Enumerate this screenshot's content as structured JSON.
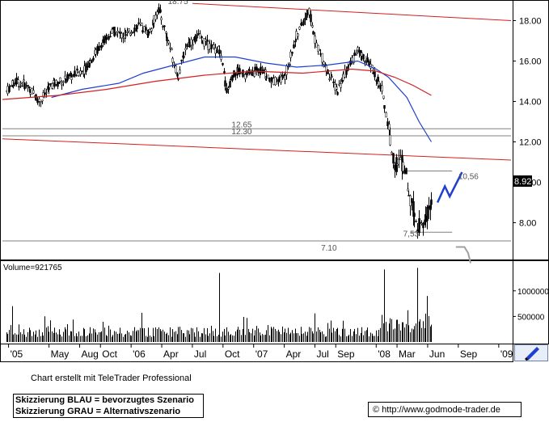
{
  "chart_data": {
    "type": "candlestick",
    "price_panel": {
      "y_ticks": [
        8.0,
        10.0,
        12.0,
        14.0,
        16.0,
        18.0
      ],
      "y_tick_labels": [
        "8.00",
        "10.00",
        "12.00",
        "14.00",
        "16.00",
        "18.00"
      ],
      "ylim": [
        6.3,
        18.9
      ],
      "current_price_label": "8.92",
      "annotations": [
        {
          "text": "18.75",
          "value": 18.75
        },
        {
          "text": "12.65",
          "value": 12.65
        },
        {
          "text": "12.30",
          "value": 12.3
        },
        {
          "text": "10,56",
          "value": 10.56
        },
        {
          "text": "7,53",
          "value": 7.53
        },
        {
          "text": "7.10",
          "value": 7.1
        }
      ],
      "moving_averages": [
        {
          "color": "#1f3fd0",
          "points": [
            [
              2005.35,
              14.2
            ],
            [
              2005.6,
              14.6
            ],
            [
              2005.9,
              14.9
            ],
            [
              2006.1,
              15.4
            ],
            [
              2006.35,
              15.8
            ],
            [
              2006.6,
              16.2
            ],
            [
              2006.85,
              16.2
            ],
            [
              2007.1,
              15.9
            ],
            [
              2007.35,
              15.7
            ],
            [
              2007.6,
              15.8
            ],
            [
              2007.85,
              16.0
            ],
            [
              2008.0,
              15.6
            ],
            [
              2008.1,
              15.2
            ],
            [
              2008.25,
              14.2
            ],
            [
              2008.35,
              13.0
            ],
            [
              2008.45,
              12.0
            ]
          ]
        },
        {
          "color": "#d42020",
          "points": [
            [
              2004.95,
              14.1
            ],
            [
              2005.4,
              14.3
            ],
            [
              2005.8,
              14.6
            ],
            [
              2006.2,
              15.0
            ],
            [
              2006.6,
              15.3
            ],
            [
              2007.0,
              15.5
            ],
            [
              2007.4,
              15.4
            ],
            [
              2007.8,
              15.6
            ],
            [
              2008.0,
              15.5
            ],
            [
              2008.15,
              15.2
            ],
            [
              2008.3,
              14.8
            ],
            [
              2008.45,
              14.3
            ]
          ]
        }
      ],
      "trendlines": [
        {
          "color": "#d42020",
          "from": [
            2006.5,
            18.85
          ],
          "to": [
            2009.1,
            18.0
          ]
        },
        {
          "color": "#d42020",
          "from": [
            2004.95,
            12.15
          ],
          "to": [
            2009.1,
            11.1
          ]
        },
        {
          "color": "#808080",
          "from": [
            2004.95,
            12.65
          ],
          "to": [
            2009.1,
            12.65
          ]
        },
        {
          "color": "#808080",
          "from": [
            2004.95,
            12.3
          ],
          "to": [
            2009.1,
            12.3
          ]
        },
        {
          "color": "#808080",
          "from": [
            2004.95,
            7.1
          ],
          "to": [
            2009.1,
            7.1
          ]
        },
        {
          "color": "#808080",
          "from": [
            2008.25,
            10.56
          ],
          "to": [
            2008.62,
            10.56
          ]
        },
        {
          "color": "#808080",
          "from": [
            2008.28,
            7.53
          ],
          "to": [
            2008.62,
            7.53
          ]
        }
      ],
      "scenario_blue": [
        [
          2008.5,
          9.0
        ],
        [
          2008.56,
          9.8
        ],
        [
          2008.6,
          9.3
        ],
        [
          2008.7,
          10.5
        ]
      ],
      "scenario_grey": [
        [
          2008.65,
          6.8
        ],
        [
          2008.72,
          6.8
        ],
        [
          2008.75,
          6.5
        ],
        [
          2008.77,
          6.0
        ]
      ]
    },
    "volume_panel": {
      "label": "Volume=921765",
      "y_ticks": [
        500000,
        1000000
      ],
      "y_tick_labels": [
        "500000",
        "1000000"
      ],
      "ylim": [
        0,
        1550000
      ]
    },
    "x_axis": {
      "xlim": [
        2004.95,
        2009.1
      ],
      "tick_labels": [
        {
          "label": "'05",
          "t": 2005.0
        },
        {
          "label": "May",
          "t": 2005.33
        },
        {
          "label": "Aug",
          "t": 2005.58
        },
        {
          "label": "Oct",
          "t": 2005.75
        },
        {
          "label": "'06",
          "t": 2006.0
        },
        {
          "label": "Apr",
          "t": 2006.25
        },
        {
          "label": "Jul",
          "t": 2006.5
        },
        {
          "label": "Oct",
          "t": 2006.75
        },
        {
          "label": "'07",
          "t": 2007.0
        },
        {
          "label": "Apr",
          "t": 2007.25
        },
        {
          "label": "Jul",
          "t": 2007.5
        },
        {
          "label": "Sep",
          "t": 2007.67
        },
        {
          "label": "'08",
          "t": 2008.0
        },
        {
          "label": "Mar",
          "t": 2008.17
        },
        {
          "label": "Jun",
          "t": 2008.42
        },
        {
          "label": "Sep",
          "t": 2008.67
        },
        {
          "label": "'09",
          "t": 2009.0
        }
      ]
    }
  },
  "footer": {
    "credit": "Chart erstellt mit TeleTrader Professional",
    "legend_blue": "Skizzierung BLAU = bevorzugtes Szenario",
    "legend_grey": "Skizzierung GRAU = Alternativszenario",
    "copyright": "© http://www.godmode-trader.de"
  },
  "colors": {
    "candle": "#000000",
    "ma_blue": "#1f3fd0",
    "ma_red": "#d42020",
    "trend_red": "#d42020",
    "scenario_blue": "#1f3fd0",
    "scenario_grey": "#a0a0a0",
    "volume": "#000000"
  },
  "toolbar": {
    "drawing_tool_icon": "pen-icon"
  }
}
